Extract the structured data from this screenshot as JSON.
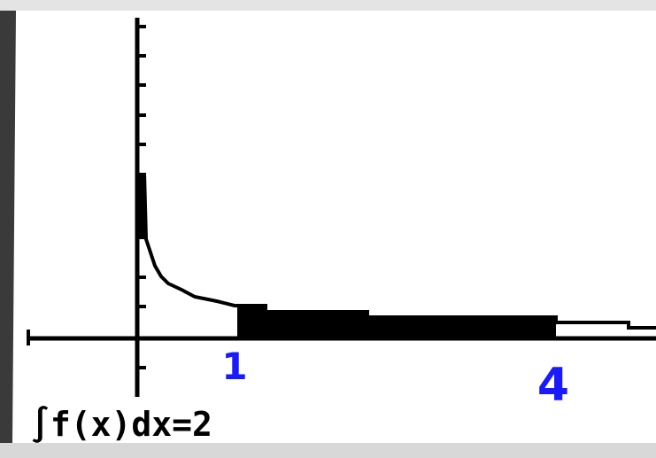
{
  "screen": {
    "annotations": [
      "1",
      "4"
    ],
    "result": "∫f(x)dx=2"
  }
}
